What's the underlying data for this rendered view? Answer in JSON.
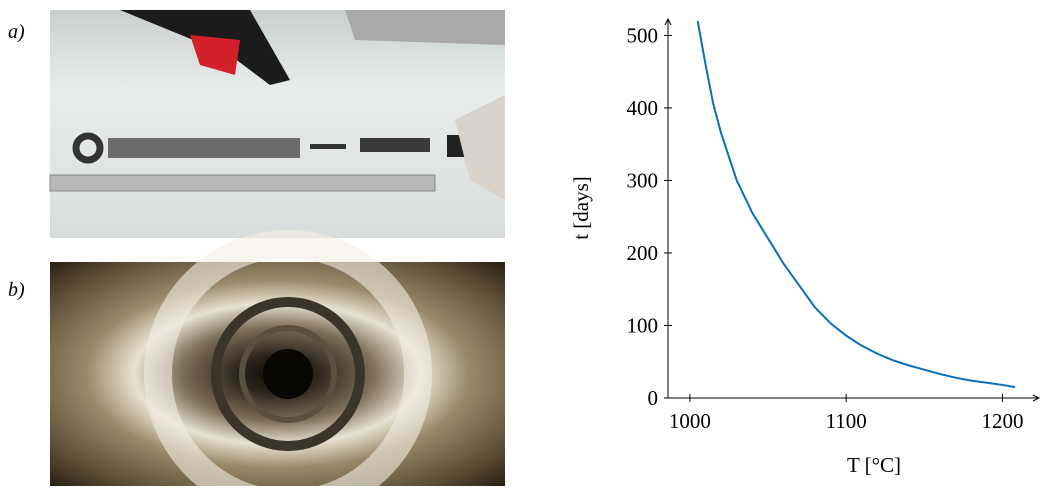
{
  "panels": [
    {
      "label": "a)"
    },
    {
      "label": "b)"
    }
  ],
  "chart_data": {
    "type": "line",
    "x_label": "T [°C]",
    "y_label": "t [days]",
    "x": [
      1005,
      1010,
      1015,
      1020,
      1030,
      1040,
      1050,
      1060,
      1070,
      1080,
      1090,
      1100,
      1110,
      1120,
      1130,
      1140,
      1150,
      1160,
      1170,
      1180,
      1190,
      1200,
      1208
    ],
    "series": [
      {
        "color": "#0a6fb8",
        "values": [
          520,
          460,
          405,
          365,
          300,
          255,
          220,
          185,
          155,
          125,
          103,
          86,
          72,
          61,
          52,
          45,
          39,
          33,
          28,
          24,
          21,
          18,
          15
        ]
      }
    ],
    "xlim": [
      986,
      1224
    ],
    "ylim": [
      0,
      524
    ],
    "xticks": [
      1000,
      1100,
      1200
    ],
    "yticks": [
      0,
      100,
      200,
      300,
      400,
      500
    ],
    "grid": false
  }
}
